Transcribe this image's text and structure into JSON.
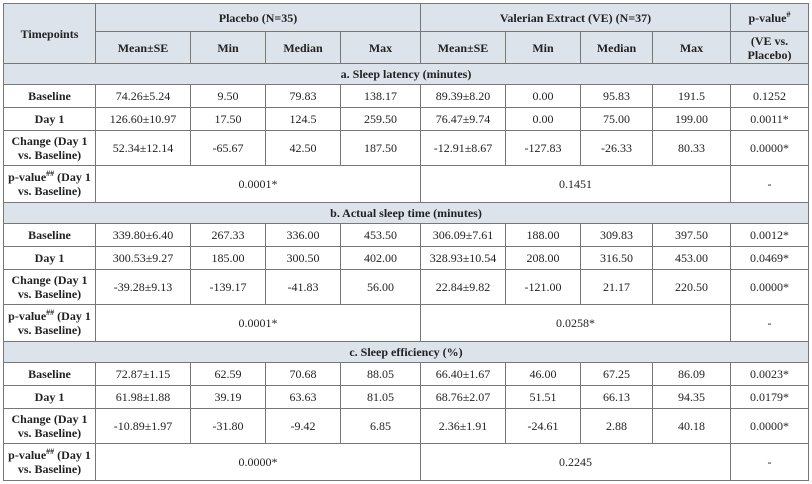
{
  "table": {
    "header": {
      "timepoints": "Timepoints",
      "groups": [
        "Placebo (N=35)",
        "Valerian Extract (VE) (N=37)"
      ],
      "pvalue": "p-value",
      "pvalue_sup": "#",
      "columns": [
        "Mean±SE",
        "Min",
        "Median",
        "Max",
        "Mean±SE",
        "Min",
        "Median",
        "Max"
      ],
      "pvalue_sub": "(VE vs. Placebo)"
    },
    "sections": [
      {
        "title": "a. Sleep latency (minutes)",
        "rows": [
          {
            "label": "Baseline",
            "cells": [
              "74.26±5.24",
              "9.50",
              "79.83",
              "138.17",
              "89.39±8.20",
              "0.00",
              "95.83",
              "191.5",
              "0.1252"
            ]
          },
          {
            "label": "Day 1",
            "cells": [
              "126.60±10.97",
              "17.50",
              "124.5",
              "259.50",
              "76.47±9.74",
              "0.00",
              "75.00",
              "199.00",
              "0.0011*"
            ]
          },
          {
            "label": "Change (Day 1 vs. Baseline)",
            "cells": [
              "52.34±12.14",
              "-65.67",
              "42.50",
              "187.50",
              "-12.91±8.67",
              "-127.83",
              "-26.33",
              "80.33",
              "0.0000*"
            ]
          },
          {
            "label": "p-value",
            "label_sup": "##",
            "label_tail": "(Day 1 vs. Baseline)",
            "placebo": "0.0001*",
            "ve": "0.1451",
            "p": "-"
          }
        ]
      },
      {
        "title": "b. Actual sleep time (minutes)",
        "rows": [
          {
            "label": "Baseline",
            "cells": [
              "339.80±6.40",
              "267.33",
              "336.00",
              "453.50",
              "306.09±7.61",
              "188.00",
              "309.83",
              "397.50",
              "0.0012*"
            ]
          },
          {
            "label": "Day 1",
            "cells": [
              "300.53±9.27",
              "185.00",
              "300.50",
              "402.00",
              "328.93±10.54",
              "208.00",
              "316.50",
              "453.00",
              "0.0469*"
            ]
          },
          {
            "label": "Change (Day 1 vs. Baseline)",
            "cells": [
              "-39.28±9.13",
              "-139.17",
              "-41.83",
              "56.00",
              "22.84±9.82",
              "-121.00",
              "21.17",
              "220.50",
              "0.0000*"
            ]
          },
          {
            "label": "p-value",
            "label_sup": "##",
            "label_tail": "(Day 1 vs. Baseline)",
            "placebo": "0.0001*",
            "ve": "0.0258*",
            "p": "-"
          }
        ]
      },
      {
        "title": "c. Sleep efficiency (%)",
        "rows": [
          {
            "label": "Baseline",
            "cells": [
              "72.87±1.15",
              "62.59",
              "70.68",
              "88.05",
              "66.40±1.67",
              "46.00",
              "67.25",
              "86.09",
              "0.0023*"
            ]
          },
          {
            "label": "Day 1",
            "cells": [
              "61.98±1.88",
              "39.19",
              "63.63",
              "81.05",
              "68.76±2.07",
              "51.51",
              "66.13",
              "94.35",
              "0.0179*"
            ]
          },
          {
            "label": "Change (Day 1 vs. Baseline)",
            "cells": [
              "-10.89±1.97",
              "-31.80",
              "-9.42",
              "6.85",
              "2.36±1.91",
              "-24.61",
              "2.88",
              "40.18",
              "0.0000*"
            ]
          },
          {
            "label": "p-value",
            "label_sup": "##",
            "label_tail": "(Day 1 vs. Baseline)",
            "placebo": "0.0000*",
            "ve": "0.2245",
            "p": "-"
          }
        ]
      }
    ]
  }
}
